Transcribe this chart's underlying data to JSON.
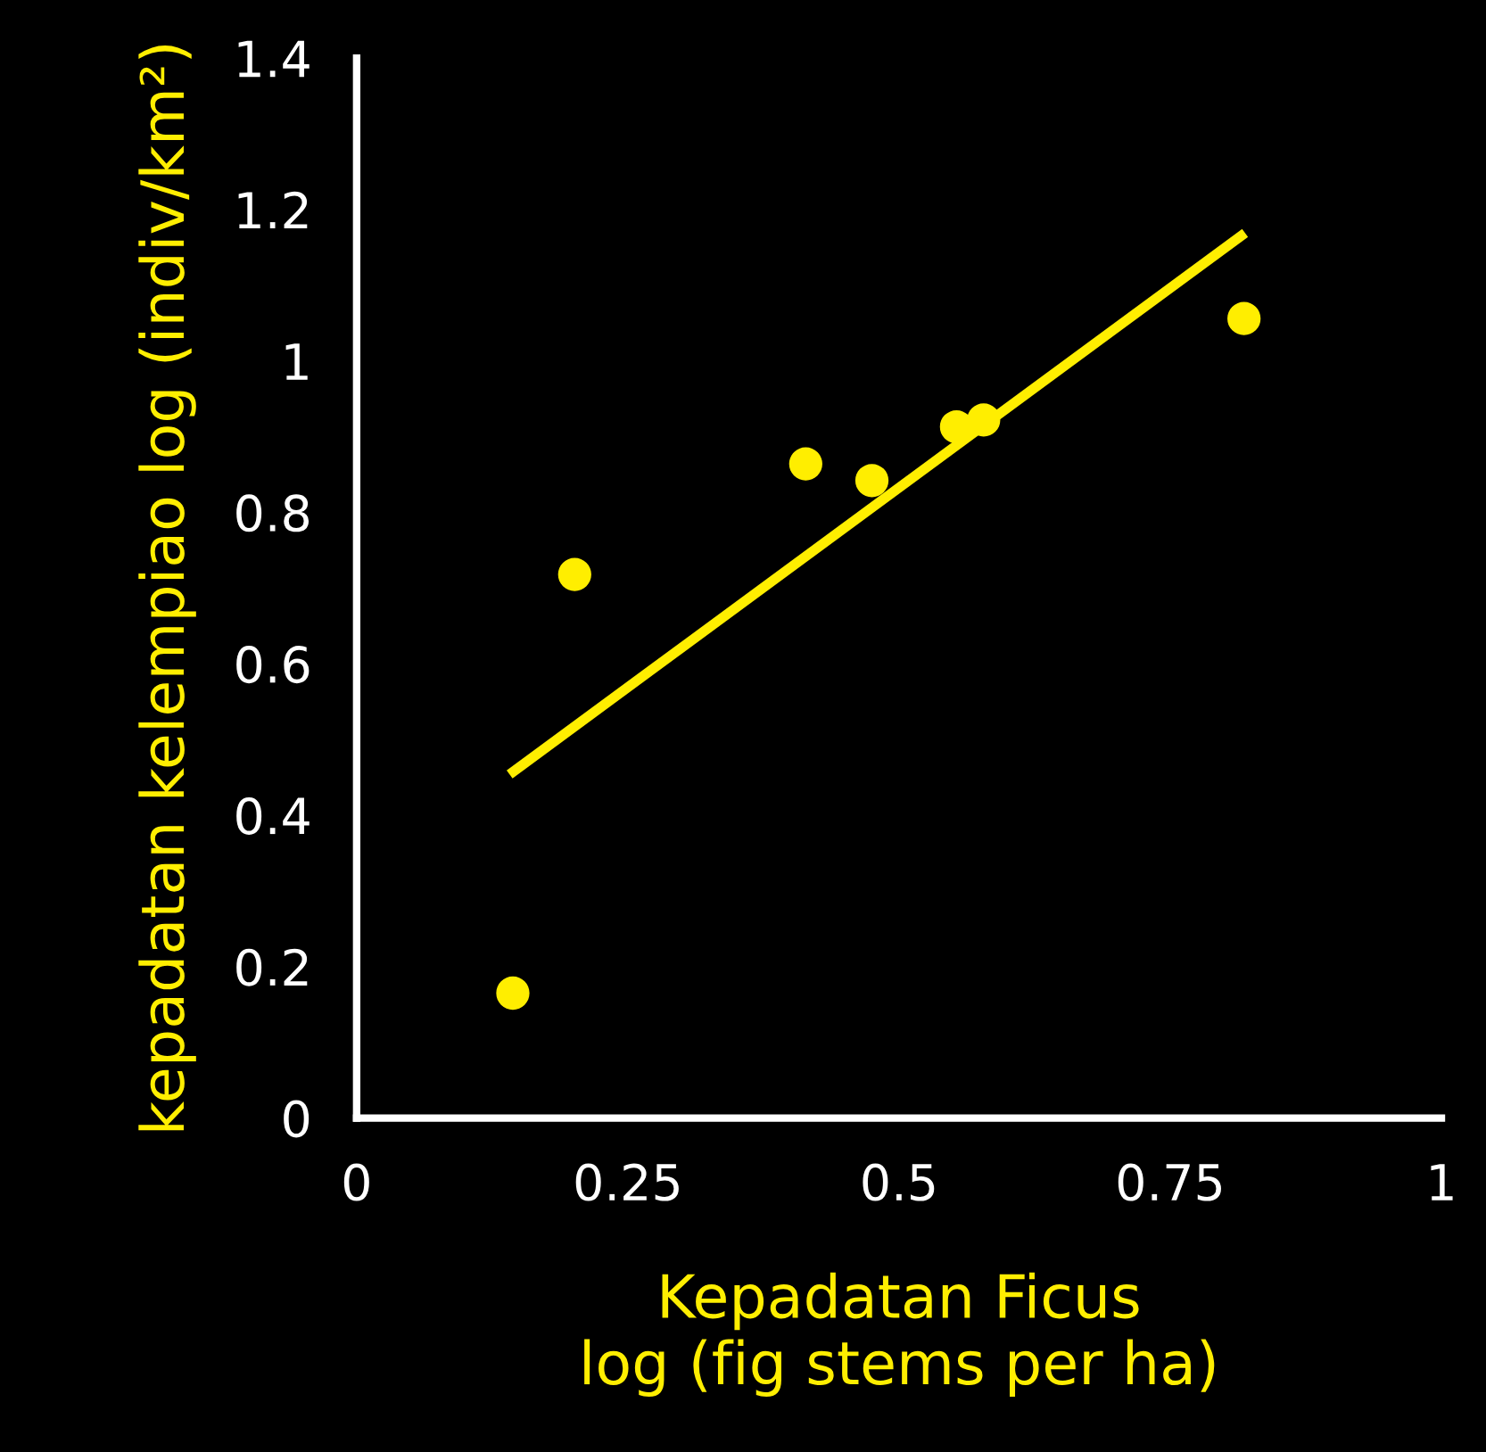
{
  "chart_data": {
    "type": "scatter",
    "xlabel": "Kepadatan Ficus\nlog (fig stems per ha)",
    "ylabel": "kepadatan kelempiao log (indiv/km²)",
    "x": [
      0.144,
      0.201,
      0.414,
      0.475,
      0.553,
      0.578,
      0.818
    ],
    "series": [
      {
        "color": "#ffee00",
        "marker": "circle",
        "values": [
          0.165,
          0.718,
          0.864,
          0.842,
          0.913,
          0.922,
          1.056
        ]
      },
      {
        "type": "line",
        "color": "#ffee00",
        "marker": "none",
        "x": [
          0.141,
          0.819
        ],
        "values": [
          0.454,
          1.169
        ]
      }
    ],
    "xlim": [
      0,
      1
    ],
    "ylim": [
      0,
      1.4
    ],
    "xticks": [
      0,
      0.25,
      0.5,
      0.75,
      1
    ],
    "yticks": [
      0,
      0.2,
      0.4,
      0.6,
      0.8,
      1,
      1.2,
      1.4
    ],
    "grid": false
  }
}
